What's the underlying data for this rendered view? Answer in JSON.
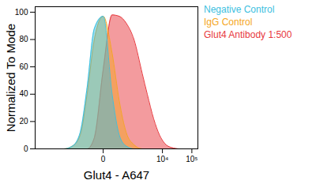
{
  "chart_data": {
    "type": "area",
    "xlabel": "Glut4 - A647",
    "ylabel": "Normalized To Mode",
    "log": "x",
    "legend": "right",
    "x": [
      -15000,
      -8000,
      -4000,
      -2000,
      -1000,
      -500,
      -250,
      -100,
      0,
      100,
      250,
      500,
      1000,
      2000,
      3000,
      5000,
      8000,
      12000,
      20000,
      40000,
      80000
    ],
    "series": [
      {
        "name": "Glut4 Antibody 1:500",
        "color": "#e8383d",
        "values": [
          0,
          0,
          0,
          0,
          0,
          0,
          0,
          8,
          58,
          98,
          97,
          92,
          80,
          55,
          40,
          22,
          10,
          4,
          1,
          0,
          0
        ]
      },
      {
        "name": "IgG Control",
        "color": "#f5a623",
        "values": [
          0,
          0,
          0,
          0,
          2,
          10,
          40,
          80,
          97,
          70,
          35,
          12,
          3,
          0,
          0,
          0,
          0,
          0,
          0,
          0,
          0
        ]
      },
      {
        "name": "Negative Control",
        "color": "#3cc0e0",
        "values": [
          0,
          0,
          0,
          0,
          2,
          12,
          45,
          88,
          97,
          40,
          10,
          2,
          0,
          0,
          0,
          0,
          0,
          0,
          0,
          0,
          0
        ]
      }
    ],
    "xlim": [
      -20000,
      160000
    ],
    "xticks": [
      {
        "value": 0,
        "label": "0"
      },
      {
        "value": 10000,
        "label": "10⁴"
      },
      {
        "value": 100000,
        "label": "10⁵"
      }
    ],
    "ylim": [
      0,
      104
    ],
    "yticks": [
      0,
      20,
      40,
      60,
      80,
      100
    ],
    "grid": false
  }
}
